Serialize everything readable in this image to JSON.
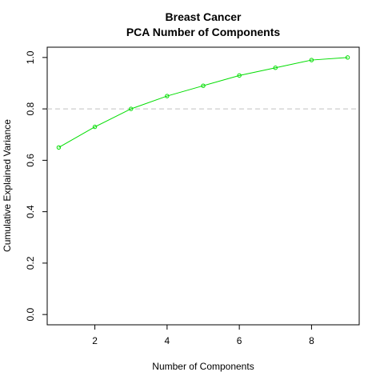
{
  "chart_data": {
    "type": "line",
    "title": "Breast Cancer",
    "subtitle": "PCA Number of Components",
    "xlabel": "Number of Components",
    "ylabel": "Cumulative Explained Variance",
    "x": [
      1,
      2,
      3,
      4,
      5,
      6,
      7,
      8,
      9
    ],
    "series": [
      {
        "values": [
          0.65,
          0.73,
          0.8,
          0.85,
          0.89,
          0.93,
          0.96,
          0.99,
          1.0
        ],
        "color": "#00dd00",
        "marker": "open-circle"
      }
    ],
    "xlim": [
      0.68,
      9.32
    ],
    "ylim": [
      -0.04,
      1.04
    ],
    "xticks": [
      2,
      4,
      6,
      8
    ],
    "xtick_labels": [
      "2",
      "4",
      "6",
      "8"
    ],
    "yticks": [
      0.0,
      0.2,
      0.4,
      0.6,
      0.8,
      1.0
    ],
    "ytick_labels": [
      "0.0",
      "0.2",
      "0.4",
      "0.6",
      "0.8",
      "1.0"
    ],
    "reference_line": {
      "y": 0.8,
      "color": "#c0c0c0",
      "style": "dashed"
    },
    "grid": false,
    "legend": "none"
  }
}
